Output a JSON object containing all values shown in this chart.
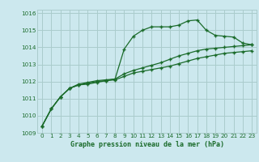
{
  "title": "Graphe pression niveau de la mer (hPa)",
  "background_color": "#cce8ee",
  "grid_color": "#aacccc",
  "line_color": "#1a6b2a",
  "xlim": [
    -0.5,
    23.5
  ],
  "ylim": [
    1009.0,
    1016.2
  ],
  "ytick_values": [
    1009,
    1010,
    1011,
    1012,
    1013,
    1014,
    1015,
    1016
  ],
  "xtick_values": [
    0,
    1,
    2,
    3,
    4,
    5,
    6,
    7,
    8,
    9,
    10,
    11,
    12,
    13,
    14,
    15,
    16,
    17,
    18,
    19,
    20,
    21,
    22,
    23
  ],
  "series": [
    [
      1009.4,
      1010.4,
      1011.1,
      1011.6,
      1011.8,
      1011.85,
      1011.95,
      1012.05,
      1012.15,
      1013.9,
      1014.65,
      1015.0,
      1015.2,
      1015.2,
      1015.2,
      1015.3,
      1015.55,
      1015.6,
      1015.0,
      1014.7,
      1014.65,
      1014.6,
      1014.25,
      1014.15
    ],
    [
      1009.4,
      1010.4,
      1011.1,
      1011.6,
      1011.85,
      1011.95,
      1012.05,
      1012.1,
      1012.15,
      1012.45,
      1012.65,
      1012.8,
      1012.95,
      1013.1,
      1013.3,
      1013.5,
      1013.65,
      1013.8,
      1013.9,
      1013.95,
      1014.0,
      1014.05,
      1014.1,
      1014.15
    ],
    [
      1009.4,
      1010.4,
      1011.1,
      1011.6,
      1011.8,
      1011.9,
      1012.0,
      1012.05,
      1012.1,
      1012.3,
      1012.5,
      1012.6,
      1012.7,
      1012.8,
      1012.9,
      1013.05,
      1013.2,
      1013.35,
      1013.45,
      1013.55,
      1013.65,
      1013.7,
      1013.75,
      1013.8
    ]
  ]
}
